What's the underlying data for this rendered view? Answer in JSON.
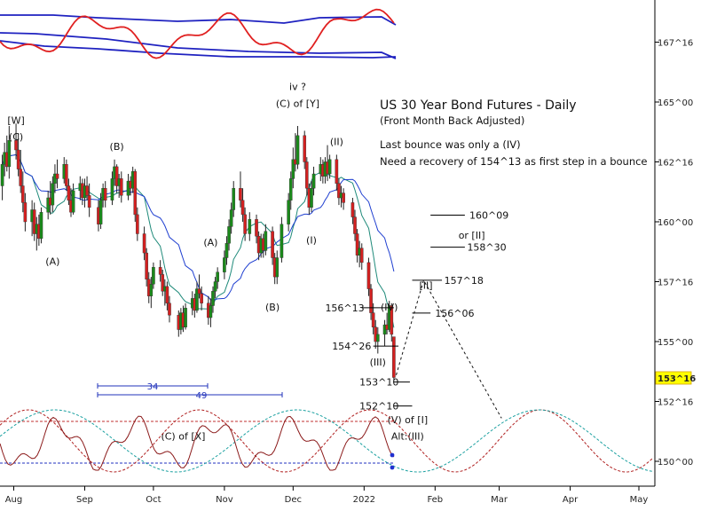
{
  "chart_data": {
    "type": "candlestick",
    "title": "US 30 Year Bond Futures - Daily",
    "subtitle": "(Front Month Back Adjusted)",
    "notes": [
      "Last bounce was only a (IV)",
      "Need a recovery of 154^13 as first step in a bounce"
    ],
    "y_ticks": [
      "167^16",
      "165^00",
      "162^16",
      "160^00",
      "157^16",
      "155^00",
      "152^16",
      "150^00"
    ],
    "y_tick_values": [
      167.5,
      165.0,
      162.5,
      160.0,
      157.5,
      155.0,
      152.5,
      150.0
    ],
    "ylim": [
      149.5,
      168.5
    ],
    "x_ticks": [
      "Aug",
      "Sep",
      "Oct",
      "Nov",
      "Dec",
      "2022",
      "Feb",
      "Mar",
      "Apr",
      "May"
    ],
    "current_price_label": "153^16",
    "current_price_value": 153.5,
    "wave_labels": [
      {
        "text": "[W]",
        "date": "2021-08-02",
        "price": 164.1
      },
      {
        "text": "(C)",
        "date": "2021-08-02",
        "price": 163.4
      },
      {
        "text": "(A)",
        "date": "2021-08-18",
        "price": 158.2
      },
      {
        "text": "(B)",
        "date": "2021-09-15",
        "price": 163.0
      },
      {
        "text": "(C) of [X]",
        "date": "2021-10-14",
        "price": 150.9
      },
      {
        "text": "(A)",
        "date": "2021-10-26",
        "price": 159.0
      },
      {
        "text": "(B)",
        "date": "2021-11-22",
        "price": 156.3
      },
      {
        "text": "iv ?",
        "date": "2021-12-03",
        "price": 165.5
      },
      {
        "text": "(C) of [Y]",
        "date": "2021-12-03",
        "price": 164.8
      },
      {
        "text": "(I)",
        "date": "2021-12-09",
        "price": 159.1
      },
      {
        "text": "(II)",
        "date": "2021-12-20",
        "price": 163.2
      },
      {
        "text": "(IV)",
        "date": "2022-01-12",
        "price": 156.3
      },
      {
        "text": "(III)",
        "date": "2022-01-07",
        "price": 154.0
      },
      {
        "text": "(V) of [I]",
        "date": "2022-01-20",
        "price": 151.6
      },
      {
        "text": "Alt:(III)",
        "date": "2022-01-20",
        "price": 150.9
      },
      {
        "text": "[II]",
        "date": "2022-01-28",
        "price": 157.2
      },
      {
        "text": "or [II]",
        "date": "2022-02-17",
        "price": 159.3
      }
    ],
    "price_levels": [
      {
        "label": "160^09",
        "value": 160.28
      },
      {
        "label": "158^30",
        "value": 158.94
      },
      {
        "label": "157^18",
        "value": 157.56
      },
      {
        "label": "156^13",
        "value": 156.41
      },
      {
        "label": "156^06",
        "value": 156.19
      },
      {
        "label": "154^26",
        "value": 154.81
      },
      {
        "label": "153^10",
        "value": 153.31
      },
      {
        "label": "152^10",
        "value": 152.31
      }
    ],
    "cycle_annotations": [
      {
        "label": "34",
        "unit": "bars"
      },
      {
        "label": "49",
        "unit": "bars"
      }
    ],
    "candles": [
      {
        "date": "2021-07-27",
        "o": 161.5,
        "h": 162.8,
        "l": 160.9,
        "c": 162.4
      },
      {
        "date": "2021-07-28",
        "o": 162.4,
        "h": 163.3,
        "l": 161.9,
        "c": 162.9
      },
      {
        "date": "2021-07-29",
        "o": 162.9,
        "h": 163.6,
        "l": 162.1,
        "c": 162.3
      },
      {
        "date": "2021-07-30",
        "o": 162.3,
        "h": 164.0,
        "l": 161.8,
        "c": 163.4
      },
      {
        "date": "2021-08-02",
        "o": 163.4,
        "h": 164.1,
        "l": 162.6,
        "c": 163.0
      },
      {
        "date": "2021-08-03",
        "o": 163.0,
        "h": 163.7,
        "l": 161.9,
        "c": 162.2
      },
      {
        "date": "2021-08-04",
        "o": 162.2,
        "h": 163.0,
        "l": 161.2,
        "c": 161.5
      },
      {
        "date": "2021-08-05",
        "o": 161.5,
        "h": 162.1,
        "l": 160.4,
        "c": 160.8
      },
      {
        "date": "2021-08-06",
        "o": 160.8,
        "h": 161.2,
        "l": 159.6,
        "c": 160.0
      },
      {
        "date": "2021-08-09",
        "o": 160.0,
        "h": 160.9,
        "l": 159.4,
        "c": 160.5
      },
      {
        "date": "2021-08-10",
        "o": 160.5,
        "h": 160.8,
        "l": 159.2,
        "c": 159.5
      },
      {
        "date": "2021-08-11",
        "o": 159.5,
        "h": 160.2,
        "l": 158.8,
        "c": 159.9
      },
      {
        "date": "2021-08-12",
        "o": 159.9,
        "h": 160.3,
        "l": 159.0,
        "c": 159.3
      },
      {
        "date": "2021-08-13",
        "o": 159.3,
        "h": 160.6,
        "l": 159.1,
        "c": 160.4
      },
      {
        "date": "2021-08-16",
        "o": 160.4,
        "h": 161.3,
        "l": 160.1,
        "c": 161.0
      },
      {
        "date": "2021-08-17",
        "o": 161.0,
        "h": 161.7,
        "l": 160.3,
        "c": 160.7
      },
      {
        "date": "2021-08-18",
        "o": 160.7,
        "h": 161.9,
        "l": 160.4,
        "c": 161.6
      },
      {
        "date": "2021-08-19",
        "o": 161.6,
        "h": 162.4,
        "l": 161.2,
        "c": 162.0
      },
      {
        "date": "2021-08-20",
        "o": 162.0,
        "h": 162.6,
        "l": 161.4,
        "c": 161.8
      },
      {
        "date": "2021-08-23",
        "o": 161.8,
        "h": 162.7,
        "l": 161.6,
        "c": 162.4
      },
      {
        "date": "2021-08-24",
        "o": 162.4,
        "h": 162.6,
        "l": 161.3,
        "c": 161.5
      },
      {
        "date": "2021-08-25",
        "o": 161.5,
        "h": 161.8,
        "l": 160.7,
        "c": 160.9
      },
      {
        "date": "2021-08-26",
        "o": 160.9,
        "h": 161.4,
        "l": 160.2,
        "c": 160.4
      },
      {
        "date": "2021-08-27",
        "o": 160.4,
        "h": 161.6,
        "l": 160.3,
        "c": 161.3
      },
      {
        "date": "2021-08-30",
        "o": 161.3,
        "h": 161.9,
        "l": 160.9,
        "c": 161.6
      },
      {
        "date": "2021-08-31",
        "o": 161.6,
        "h": 161.8,
        "l": 160.7,
        "c": 161.0
      },
      {
        "date": "2021-09-01",
        "o": 161.0,
        "h": 161.8,
        "l": 160.6,
        "c": 161.5
      },
      {
        "date": "2021-09-02",
        "o": 161.5,
        "h": 161.9,
        "l": 160.9,
        "c": 161.1
      },
      {
        "date": "2021-09-03",
        "o": 161.1,
        "h": 161.6,
        "l": 160.2,
        "c": 160.6
      },
      {
        "date": "2021-09-07",
        "o": 160.6,
        "h": 160.9,
        "l": 159.6,
        "c": 159.9
      },
      {
        "date": "2021-09-08",
        "o": 159.9,
        "h": 161.2,
        "l": 159.7,
        "c": 160.9
      },
      {
        "date": "2021-09-09",
        "o": 160.9,
        "h": 161.6,
        "l": 160.6,
        "c": 161.4
      },
      {
        "date": "2021-09-10",
        "o": 161.4,
        "h": 161.7,
        "l": 160.6,
        "c": 160.9
      },
      {
        "date": "2021-09-13",
        "o": 160.9,
        "h": 162.1,
        "l": 160.7,
        "c": 161.8
      },
      {
        "date": "2021-09-14",
        "o": 161.8,
        "h": 162.6,
        "l": 161.5,
        "c": 162.3
      },
      {
        "date": "2021-09-15",
        "o": 162.3,
        "h": 162.4,
        "l": 161.2,
        "c": 161.5
      },
      {
        "date": "2021-09-16",
        "o": 161.5,
        "h": 162.0,
        "l": 161.0,
        "c": 161.8
      },
      {
        "date": "2021-09-17",
        "o": 161.8,
        "h": 162.1,
        "l": 160.8,
        "c": 161.1
      },
      {
        "date": "2021-09-20",
        "o": 161.1,
        "h": 162.0,
        "l": 160.9,
        "c": 161.7
      },
      {
        "date": "2021-09-21",
        "o": 161.7,
        "h": 161.9,
        "l": 161.1,
        "c": 161.4
      },
      {
        "date": "2021-09-22",
        "o": 161.4,
        "h": 162.3,
        "l": 161.2,
        "c": 162.1
      },
      {
        "date": "2021-09-23",
        "o": 162.1,
        "h": 162.2,
        "l": 160.0,
        "c": 160.3
      },
      {
        "date": "2021-09-24",
        "o": 160.3,
        "h": 160.6,
        "l": 159.2,
        "c": 159.5
      },
      {
        "date": "2021-09-27",
        "o": 159.5,
        "h": 159.8,
        "l": 158.4,
        "c": 158.7
      },
      {
        "date": "2021-09-28",
        "o": 158.7,
        "h": 158.9,
        "l": 157.3,
        "c": 157.6
      },
      {
        "date": "2021-09-29",
        "o": 157.6,
        "h": 157.9,
        "l": 156.6,
        "c": 156.9
      },
      {
        "date": "2021-09-30",
        "o": 156.9,
        "h": 157.7,
        "l": 156.4,
        "c": 157.4
      },
      {
        "date": "2021-10-01",
        "o": 157.4,
        "h": 158.3,
        "l": 157.2,
        "c": 158.1
      },
      {
        "date": "2021-10-04",
        "o": 158.1,
        "h": 158.4,
        "l": 157.5,
        "c": 157.8
      },
      {
        "date": "2021-10-05",
        "o": 157.8,
        "h": 158.0,
        "l": 156.9,
        "c": 157.1
      },
      {
        "date": "2021-10-06",
        "o": 157.1,
        "h": 157.6,
        "l": 156.5,
        "c": 157.3
      },
      {
        "date": "2021-10-07",
        "o": 157.3,
        "h": 157.5,
        "l": 156.3,
        "c": 156.6
      },
      {
        "date": "2021-10-08",
        "o": 156.6,
        "h": 156.9,
        "l": 155.8,
        "c": 156.1
      },
      {
        "date": "2021-10-12",
        "o": 156.1,
        "h": 156.3,
        "l": 155.2,
        "c": 155.5
      },
      {
        "date": "2021-10-13",
        "o": 155.5,
        "h": 156.4,
        "l": 155.3,
        "c": 156.2
      },
      {
        "date": "2021-10-14",
        "o": 156.2,
        "h": 156.5,
        "l": 155.4,
        "c": 155.6
      },
      {
        "date": "2021-10-15",
        "o": 155.6,
        "h": 156.6,
        "l": 155.5,
        "c": 156.4
      },
      {
        "date": "2021-10-18",
        "o": 156.4,
        "h": 157.1,
        "l": 156.1,
        "c": 156.8
      },
      {
        "date": "2021-10-19",
        "o": 156.8,
        "h": 157.0,
        "l": 156.0,
        "c": 156.3
      },
      {
        "date": "2021-10-20",
        "o": 156.3,
        "h": 157.5,
        "l": 156.2,
        "c": 157.2
      },
      {
        "date": "2021-10-21",
        "o": 157.2,
        "h": 157.8,
        "l": 156.8,
        "c": 157.0
      },
      {
        "date": "2021-10-22",
        "o": 157.0,
        "h": 157.3,
        "l": 156.3,
        "c": 156.6
      },
      {
        "date": "2021-10-25",
        "o": 156.6,
        "h": 156.9,
        "l": 155.7,
        "c": 156.0
      },
      {
        "date": "2021-10-26",
        "o": 156.0,
        "h": 156.8,
        "l": 155.6,
        "c": 156.5
      },
      {
        "date": "2021-10-27",
        "o": 156.5,
        "h": 157.3,
        "l": 156.2,
        "c": 157.1
      },
      {
        "date": "2021-10-28",
        "o": 157.1,
        "h": 157.7,
        "l": 156.8,
        "c": 157.5
      },
      {
        "date": "2021-10-29",
        "o": 157.5,
        "h": 158.1,
        "l": 157.2,
        "c": 157.9
      },
      {
        "date": "2021-11-01",
        "o": 157.9,
        "h": 158.8,
        "l": 157.6,
        "c": 158.5
      },
      {
        "date": "2021-11-02",
        "o": 158.5,
        "h": 159.4,
        "l": 158.2,
        "c": 159.1
      },
      {
        "date": "2021-11-03",
        "o": 159.1,
        "h": 160.1,
        "l": 158.8,
        "c": 159.8
      },
      {
        "date": "2021-11-04",
        "o": 159.8,
        "h": 160.8,
        "l": 159.5,
        "c": 160.5
      },
      {
        "date": "2021-11-05",
        "o": 160.5,
        "h": 161.7,
        "l": 160.2,
        "c": 161.4
      },
      {
        "date": "2021-11-08",
        "o": 161.4,
        "h": 162.1,
        "l": 160.6,
        "c": 160.9
      },
      {
        "date": "2021-11-09",
        "o": 160.9,
        "h": 161.4,
        "l": 160.0,
        "c": 160.3
      },
      {
        "date": "2021-11-10",
        "o": 160.3,
        "h": 160.6,
        "l": 159.2,
        "c": 159.5
      },
      {
        "date": "2021-11-12",
        "o": 159.5,
        "h": 160.4,
        "l": 159.2,
        "c": 160.1
      },
      {
        "date": "2021-11-15",
        "o": 160.1,
        "h": 160.3,
        "l": 159.1,
        "c": 159.4
      },
      {
        "date": "2021-11-16",
        "o": 159.4,
        "h": 159.6,
        "l": 158.4,
        "c": 158.7
      },
      {
        "date": "2021-11-17",
        "o": 158.7,
        "h": 159.5,
        "l": 158.5,
        "c": 159.3
      },
      {
        "date": "2021-11-18",
        "o": 159.3,
        "h": 159.5,
        "l": 158.5,
        "c": 158.8
      },
      {
        "date": "2021-11-19",
        "o": 158.8,
        "h": 159.9,
        "l": 158.6,
        "c": 159.6
      },
      {
        "date": "2021-11-22",
        "o": 159.6,
        "h": 159.8,
        "l": 158.2,
        "c": 158.5
      },
      {
        "date": "2021-11-23",
        "o": 158.5,
        "h": 158.7,
        "l": 157.4,
        "c": 157.7
      },
      {
        "date": "2021-11-24",
        "o": 157.7,
        "h": 158.8,
        "l": 157.4,
        "c": 158.5
      },
      {
        "date": "2021-11-26",
        "o": 158.5,
        "h": 160.2,
        "l": 158.3,
        "c": 159.9
      },
      {
        "date": "2021-11-29",
        "o": 159.9,
        "h": 161.2,
        "l": 159.6,
        "c": 160.9
      },
      {
        "date": "2021-11-30",
        "o": 160.9,
        "h": 162.1,
        "l": 160.5,
        "c": 161.8
      },
      {
        "date": "2021-12-01",
        "o": 161.8,
        "h": 163.1,
        "l": 161.4,
        "c": 162.6
      },
      {
        "date": "2021-12-02",
        "o": 162.6,
        "h": 163.7,
        "l": 162.1,
        "c": 162.4
      },
      {
        "date": "2021-12-03",
        "o": 162.4,
        "h": 164.0,
        "l": 162.2,
        "c": 163.6
      },
      {
        "date": "2021-12-06",
        "o": 163.6,
        "h": 163.8,
        "l": 162.2,
        "c": 162.5
      },
      {
        "date": "2021-12-07",
        "o": 162.5,
        "h": 162.7,
        "l": 161.1,
        "c": 161.4
      },
      {
        "date": "2021-12-08",
        "o": 161.4,
        "h": 161.6,
        "l": 160.3,
        "c": 160.6
      },
      {
        "date": "2021-12-09",
        "o": 160.6,
        "h": 161.7,
        "l": 160.4,
        "c": 161.4
      },
      {
        "date": "2021-12-10",
        "o": 161.4,
        "h": 162.3,
        "l": 161.1,
        "c": 162.0
      },
      {
        "date": "2021-12-13",
        "o": 162.0,
        "h": 162.7,
        "l": 161.7,
        "c": 162.4
      },
      {
        "date": "2021-12-14",
        "o": 162.4,
        "h": 162.6,
        "l": 161.6,
        "c": 161.9
      },
      {
        "date": "2021-12-15",
        "o": 161.9,
        "h": 162.7,
        "l": 161.6,
        "c": 162.5
      },
      {
        "date": "2021-12-16",
        "o": 162.5,
        "h": 163.2,
        "l": 161.7,
        "c": 162.0
      },
      {
        "date": "2021-12-17",
        "o": 162.0,
        "h": 162.8,
        "l": 161.8,
        "c": 162.6
      },
      {
        "date": "2021-12-20",
        "o": 162.6,
        "h": 162.8,
        "l": 161.3,
        "c": 161.6
      },
      {
        "date": "2021-12-21",
        "o": 161.6,
        "h": 161.8,
        "l": 160.7,
        "c": 161.0
      },
      {
        "date": "2021-12-22",
        "o": 161.0,
        "h": 161.5,
        "l": 160.6,
        "c": 161.2
      },
      {
        "date": "2021-12-23",
        "o": 161.2,
        "h": 161.4,
        "l": 160.5,
        "c": 160.8
      },
      {
        "date": "2021-12-27",
        "o": 160.8,
        "h": 161.0,
        "l": 159.9,
        "c": 160.2
      },
      {
        "date": "2021-12-28",
        "o": 160.2,
        "h": 160.5,
        "l": 159.2,
        "c": 159.5
      },
      {
        "date": "2021-12-29",
        "o": 159.5,
        "h": 159.7,
        "l": 158.3,
        "c": 158.6
      },
      {
        "date": "2021-12-30",
        "o": 158.6,
        "h": 159.2,
        "l": 158.1,
        "c": 158.9
      },
      {
        "date": "2021-12-31",
        "o": 158.9,
        "h": 159.1,
        "l": 158.0,
        "c": 158.3
      },
      {
        "date": "2022-01-03",
        "o": 158.3,
        "h": 158.5,
        "l": 156.9,
        "c": 157.2
      },
      {
        "date": "2022-01-04",
        "o": 157.2,
        "h": 157.4,
        "l": 155.9,
        "c": 156.2
      },
      {
        "date": "2022-01-05",
        "o": 156.2,
        "h": 156.6,
        "l": 155.3,
        "c": 155.6
      },
      {
        "date": "2022-01-06",
        "o": 155.6,
        "h": 155.9,
        "l": 154.7,
        "c": 155.0
      },
      {
        "date": "2022-01-07",
        "o": 155.0,
        "h": 155.6,
        "l": 154.5,
        "c": 155.3
      },
      {
        "date": "2022-01-10",
        "o": 155.3,
        "h": 155.9,
        "l": 154.8,
        "c": 155.7
      },
      {
        "date": "2022-01-11",
        "o": 155.7,
        "h": 156.2,
        "l": 155.3,
        "c": 155.5
      },
      {
        "date": "2022-01-12",
        "o": 155.5,
        "h": 156.7,
        "l": 155.4,
        "c": 156.5
      },
      {
        "date": "2022-01-13",
        "o": 156.5,
        "h": 156.6,
        "l": 155.0,
        "c": 155.3
      },
      {
        "date": "2022-01-14",
        "o": 155.2,
        "h": 155.2,
        "l": 153.4,
        "c": 153.5
      }
    ]
  }
}
